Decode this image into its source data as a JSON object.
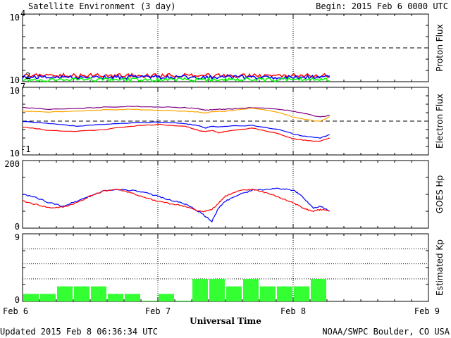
{
  "header": {
    "title": "Satellite Environment (3 day)",
    "begin": "Begin:  2015 Feb 6 0000 UTC"
  },
  "footer": {
    "updated": "Updated 2015 Feb  8 06:36:34 UTC",
    "source": "NOAA/SWPC Boulder, CO USA",
    "x_axis_title": "Universal Time"
  },
  "x_ticks": [
    "Feb 6",
    "Feb 7",
    "Feb 8",
    "Feb 9"
  ],
  "colors": {
    "red": "#ff0000",
    "blue": "#0000ff",
    "green": "#00ff00",
    "orange": "#ffa500",
    "purple": "#800080",
    "bar": "#33ff33"
  },
  "chart_data": [
    {
      "type": "line",
      "ylabel": "Proton Flux",
      "scale": "log",
      "ylim": [
        0.01,
        10000
      ],
      "tick_labels": [
        "10",
        "10"
      ],
      "tick_exponents": [
        "4",
        "-2"
      ],
      "threshold": 10,
      "x_range_days": [
        0,
        3
      ],
      "x_data_end_days": 2.27,
      "series": [
        {
          "color": "red",
          "level": 0.035
        },
        {
          "color": "blue",
          "level": 0.025
        },
        {
          "color": "green",
          "level": 0.015
        }
      ]
    },
    {
      "type": "line",
      "ylabel": "Electron Flux",
      "scale": "log",
      "ylim": [
        0.1,
        10000000
      ],
      "tick_labels": [
        "10",
        "10"
      ],
      "tick_exponents": [
        "7",
        "-1"
      ],
      "threshold": 1000,
      "x_range_days": [
        0,
        3
      ],
      "series": [
        {
          "color": "purple",
          "x": [
            0,
            0.2,
            0.4,
            0.6,
            0.8,
            1.0,
            1.2,
            1.3,
            1.35,
            1.4,
            1.45,
            1.5,
            1.7,
            1.9,
            2.0,
            2.1,
            2.2,
            2.27
          ],
          "y": [
            40000,
            25000,
            30000,
            45000,
            55000,
            48000,
            40000,
            30000,
            20000,
            22000,
            25000,
            25000,
            40000,
            25000,
            15000,
            7000,
            3000,
            5000
          ]
        },
        {
          "color": "orange",
          "x": [
            0,
            0.2,
            0.4,
            0.6,
            0.8,
            1.0,
            1.2,
            1.3,
            1.35,
            1.4,
            1.45,
            1.5,
            1.7,
            1.9,
            2.0,
            2.1,
            2.2,
            2.27
          ],
          "y": [
            15000,
            12000,
            15000,
            22000,
            25000,
            20000,
            15000,
            12000,
            9000,
            13000,
            14000,
            14000,
            35000,
            10000,
            3000,
            1500,
            900,
            3500
          ]
        },
        {
          "color": "blue",
          "x": [
            0,
            0.2,
            0.4,
            0.6,
            0.8,
            1.0,
            1.2,
            1.3,
            1.35,
            1.4,
            1.45,
            1.5,
            1.7,
            1.9,
            2.0,
            2.1,
            2.2,
            2.27
          ],
          "y": [
            900,
            500,
            250,
            400,
            600,
            800,
            500,
            300,
            150,
            250,
            200,
            250,
            300,
            100,
            30,
            15,
            10,
            25
          ]
        },
        {
          "color": "red",
          "x": [
            0,
            0.2,
            0.4,
            0.6,
            0.8,
            1.0,
            1.2,
            1.3,
            1.35,
            1.4,
            1.45,
            1.5,
            1.7,
            1.9,
            2.0,
            2.1,
            2.2,
            2.27
          ],
          "y": [
            200,
            80,
            60,
            100,
            250,
            400,
            250,
            80,
            60,
            80,
            40,
            60,
            150,
            30,
            8,
            5,
            4,
            10
          ]
        }
      ]
    },
    {
      "type": "line",
      "ylabel": "GOES Hp",
      "scale": "linear",
      "ylim": [
        0,
        200
      ],
      "tick_labels": [
        "200",
        "0"
      ],
      "x_range_days": [
        0,
        3
      ],
      "series": [
        {
          "color": "blue",
          "x": [
            0,
            0.1,
            0.2,
            0.3,
            0.4,
            0.5,
            0.6,
            0.7,
            0.8,
            0.9,
            1.0,
            1.1,
            1.2,
            1.3,
            1.35,
            1.4,
            1.45,
            1.5,
            1.6,
            1.7,
            1.8,
            1.9,
            2.0,
            2.05,
            2.1,
            2.15,
            2.2,
            2.27
          ],
          "y": [
            100,
            90,
            75,
            65,
            80,
            95,
            110,
            115,
            112,
            105,
            95,
            82,
            72,
            50,
            35,
            20,
            60,
            80,
            100,
            112,
            115,
            117,
            112,
            100,
            80,
            60,
            65,
            50
          ]
        },
        {
          "color": "red",
          "x": [
            0,
            0.1,
            0.2,
            0.3,
            0.4,
            0.5,
            0.6,
            0.7,
            0.8,
            0.9,
            1.0,
            1.1,
            1.2,
            1.3,
            1.35,
            1.4,
            1.45,
            1.5,
            1.6,
            1.7,
            1.8,
            1.9,
            2.0,
            2.05,
            2.1,
            2.15,
            2.2,
            2.27
          ],
          "y": [
            80,
            70,
            60,
            62,
            75,
            95,
            110,
            115,
            105,
            90,
            80,
            72,
            65,
            50,
            50,
            55,
            75,
            95,
            110,
            115,
            105,
            90,
            75,
            65,
            55,
            50,
            55,
            50
          ]
        }
      ]
    },
    {
      "type": "bar",
      "ylabel": "Estimated Kp",
      "ylim": [
        0,
        9
      ],
      "tick_labels": [
        "9",
        "0"
      ],
      "grid_levels": [
        3,
        5,
        7,
        9
      ],
      "x_range_days": [
        0,
        3
      ],
      "bin_hours": 3,
      "values": [
        1,
        1,
        2,
        2,
        2,
        1,
        1,
        0,
        1,
        0,
        3,
        3,
        2,
        3,
        2,
        2,
        2,
        3
      ]
    }
  ]
}
